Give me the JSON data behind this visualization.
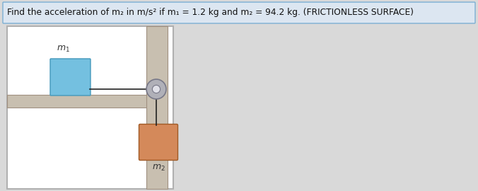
{
  "title": "Find the acceleration of m₂ in m/s² if m₁ = 1.2 kg and m₂ = 94.2 kg. (FRICTIONLESS SURFACE)",
  "title_fontsize": 8.8,
  "title_color": "#111111",
  "title_box_facecolor": "#dce6f1",
  "title_box_edgecolor": "#7bafd4",
  "bg_color": "#d9d9d9",
  "panel_facecolor": "#ffffff",
  "panel_edgecolor": "#b0b0b0",
  "surface_facecolor": "#c8bfb0",
  "surface_edgecolor": "#a09080",
  "wall_facecolor": "#c8bfb0",
  "wall_edgecolor": "#a09080",
  "m1_facecolor": "#74c0e0",
  "m1_edgecolor": "#4499bb",
  "m2_facecolor": "#d4895a",
  "m2_edgecolor": "#a05a25",
  "pulley_facecolor": "#b0b0b8",
  "pulley_edgecolor": "#787888",
  "pulley_inner_facecolor": "#e0e0e8",
  "rope_color": "#222222",
  "label_m1": "$m_1$",
  "label_m2": "$m_2$",
  "label_fontsize": 9
}
